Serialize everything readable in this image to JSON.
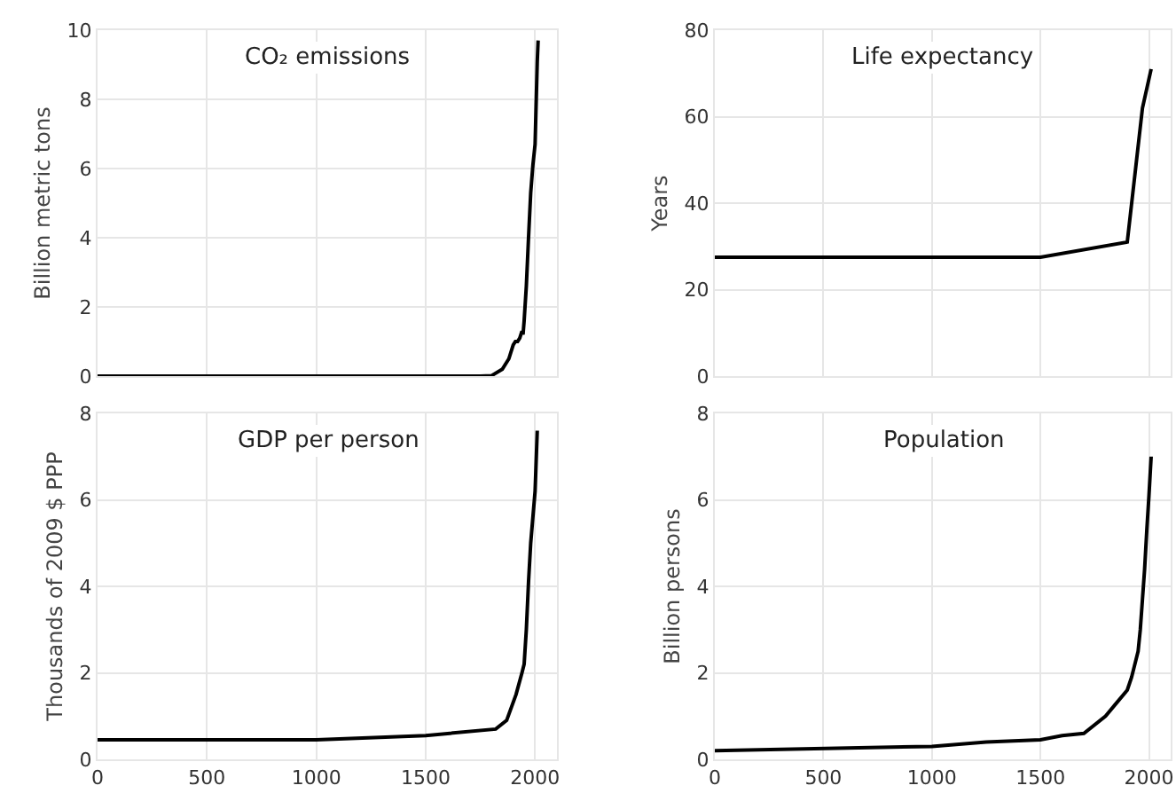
{
  "chart_data": [
    {
      "type": "line",
      "title": "CO₂ emissions",
      "ylabel": "Billion metric tons",
      "xlim": [
        0,
        2100
      ],
      "xticks": [
        0,
        500,
        1000,
        1500,
        2000
      ],
      "ylim": [
        0,
        10
      ],
      "yticks": [
        0,
        2,
        4,
        6,
        8,
        10
      ],
      "grid": true,
      "tick_labels": "y",
      "series": [
        {
          "color": "#000000",
          "x": [
            0,
            500,
            1000,
            1500,
            1750,
            1800,
            1850,
            1880,
            1900,
            1910,
            1920,
            1930,
            1940,
            1945,
            1950,
            1960,
            1970,
            1980,
            1990,
            2000,
            2010,
            2014
          ],
          "values": [
            0,
            0,
            0,
            0,
            0,
            0.01,
            0.2,
            0.5,
            0.9,
            1.0,
            1.0,
            1.1,
            1.3,
            1.2,
            1.6,
            2.6,
            4.0,
            5.3,
            6.1,
            6.7,
            9.1,
            9.7
          ]
        }
      ]
    },
    {
      "type": "line",
      "title": "Life expectancy",
      "ylabel": "Years",
      "xlim": [
        0,
        2100
      ],
      "xticks": [
        0,
        500,
        1000,
        1500,
        2000
      ],
      "ylim": [
        0,
        80
      ],
      "yticks": [
        0,
        20,
        40,
        60,
        80
      ],
      "grid": true,
      "tick_labels": "y",
      "series": [
        {
          "color": "#000000",
          "x": [
            0,
            500,
            1000,
            1500,
            1900,
            1970,
            2010
          ],
          "values": [
            27.5,
            27.5,
            27.5,
            27.5,
            31,
            62,
            71
          ]
        }
      ]
    },
    {
      "type": "line",
      "title": "GDP per person",
      "ylabel": "Thousands of 2009 $ PPP",
      "xlim": [
        0,
        2100
      ],
      "xticks": [
        0,
        500,
        1000,
        1500,
        2000
      ],
      "ylim": [
        0,
        8
      ],
      "yticks": [
        0,
        2,
        4,
        6,
        8
      ],
      "grid": true,
      "series": [
        {
          "color": "#000000",
          "x": [
            0,
            1000,
            1500,
            1820,
            1870,
            1913,
            1940,
            1950,
            1960,
            1970,
            1980,
            1990,
            2000,
            2010
          ],
          "values": [
            0.45,
            0.45,
            0.55,
            0.7,
            0.9,
            1.5,
            2.0,
            2.2,
            3.0,
            4.1,
            5.0,
            5.6,
            6.2,
            7.6
          ]
        }
      ]
    },
    {
      "type": "line",
      "title": "Population",
      "ylabel": "Billion persons",
      "xlim": [
        0,
        2100
      ],
      "xticks": [
        0,
        500,
        1000,
        1500,
        2000
      ],
      "ylim": [
        0,
        8
      ],
      "yticks": [
        0,
        2,
        4,
        6,
        8
      ],
      "grid": true,
      "series": [
        {
          "color": "#000000",
          "x": [
            0,
            1000,
            1250,
            1500,
            1600,
            1700,
            1800,
            1850,
            1900,
            1920,
            1950,
            1960,
            1970,
            1980,
            1990,
            2000,
            2010
          ],
          "values": [
            0.2,
            0.3,
            0.4,
            0.45,
            0.55,
            0.6,
            1.0,
            1.3,
            1.6,
            1.9,
            2.5,
            3.0,
            3.7,
            4.4,
            5.3,
            6.1,
            7.0
          ]
        }
      ]
    }
  ]
}
